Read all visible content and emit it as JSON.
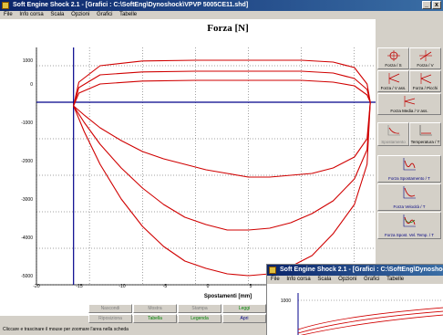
{
  "window": {
    "title": "Soft Engine Shock 2.1 - [Grafici : C:\\SoftEng\\Dynoshock\\VPVP 5005CE11.shd]",
    "menu": [
      "File",
      "Info corsa",
      "Scala",
      "Opzioni",
      "Grafici",
      "Tabelle"
    ],
    "controls": {
      "minimize": "_",
      "close": "x"
    }
  },
  "plot": {
    "title": "Forza [N]",
    "xlabel": "Spostamenti [mm]",
    "yticks": [
      "1000",
      "0",
      "-1000",
      "-2000",
      "-3000",
      "-4000",
      "-5000"
    ],
    "xticks": [
      "-20",
      "-15",
      "-10",
      "-5",
      "0",
      "5",
      "10"
    ]
  },
  "chart_data": {
    "type": "line",
    "title": "Forza [N]",
    "xlabel": "Spostamenti [mm]",
    "ylabel": "",
    "xlim": [
      -20,
      12
    ],
    "ylim": [
      -5000,
      1500
    ],
    "grid": true,
    "series": [
      {
        "x": [
          -16.5,
          -15.5,
          -14,
          -12,
          -10,
          -8,
          -6,
          -4,
          -2,
          0,
          2,
          4,
          6,
          8,
          10,
          11.2,
          11.5,
          11.2,
          10,
          8,
          5,
          0,
          -5,
          -10,
          -14,
          -16,
          -16.5
        ],
        "y": [
          -100,
          -350,
          -700,
          -1050,
          -1350,
          -1550,
          -1700,
          -1850,
          -1950,
          -2050,
          -2050,
          -2000,
          -1950,
          -1800,
          -1500,
          -1000,
          0,
          200,
          450,
          550,
          600,
          600,
          600,
          580,
          500,
          250,
          -100
        ]
      },
      {
        "x": [
          -16.5,
          -15.5,
          -14,
          -12,
          -10,
          -8,
          -6,
          -4,
          -2,
          0,
          2,
          4,
          6,
          8,
          10,
          11.2,
          11.5,
          11.2,
          10,
          8,
          5,
          0,
          -5,
          -10,
          -14,
          -16,
          -16.5
        ],
        "y": [
          -100,
          -550,
          -1150,
          -1800,
          -2350,
          -2800,
          -3150,
          -3350,
          -3500,
          -3500,
          -3450,
          -3300,
          -3050,
          -2700,
          -2100,
          -1300,
          0,
          350,
          650,
          800,
          850,
          850,
          850,
          830,
          750,
          400,
          -100
        ]
      },
      {
        "x": [
          -16.5,
          -15.5,
          -14,
          -12,
          -10,
          -8,
          -6,
          -4,
          -2,
          0,
          2,
          4,
          6,
          8,
          10,
          11.2,
          11.5,
          11.2,
          10,
          8,
          5,
          0,
          -5,
          -10,
          -14,
          -16,
          -16.5
        ],
        "y": [
          -100,
          -800,
          -1700,
          -2650,
          -3400,
          -3950,
          -4350,
          -4550,
          -4700,
          -4750,
          -4700,
          -4500,
          -4200,
          -3600,
          -2800,
          -1700,
          0,
          500,
          950,
          1100,
          1150,
          1150,
          1150,
          1130,
          1000,
          550,
          -100
        ]
      }
    ]
  },
  "toolbar": {
    "buttons": [
      {
        "label": "Forza / S",
        "icon": "crosshair-icon"
      },
      {
        "label": "Forza / V",
        "icon": "crosshair-icon"
      },
      {
        "label": "Forza / V ass.",
        "icon": "arrow-icon"
      },
      {
        "label": "Forza / Picchi",
        "icon": "arrow-icon"
      },
      {
        "label": "Forza Media / V ass.",
        "icon": "arrow-icon"
      },
      {
        "label": "Spostamento",
        "icon": "curve-icon"
      },
      {
        "label": "Temperatura / T",
        "icon": "curve-icon"
      },
      {
        "label": "Forza Spostamento / T",
        "icon": "wave-icon"
      },
      {
        "label": "Forza Velocità / T",
        "icon": "wave-icon"
      },
      {
        "label": "Forza Spost. Vel. Temp. / T",
        "icon": "wave-icon"
      }
    ]
  },
  "bottom_buttons": {
    "row1": [
      "Nascondi",
      "Mostra",
      "Stampa",
      "Leggi"
    ],
    "row2": [
      "Riposiziona",
      "Tabella",
      "Legenda",
      "Apri"
    ]
  },
  "statusbar": {
    "text": "Cliccare e trascinare il mouse per zoomare l'area nella scheda"
  },
  "inset": {
    "title": "Soft Engine Shock 2.1 - [Grafici : C:\\SoftEng\\Dynoshock\\VPVP 5005CE11.shd]",
    "ytick": "1000"
  },
  "colors": {
    "curve": "#d00000",
    "axis": "#00008b",
    "titlebar": "#0a246a"
  }
}
